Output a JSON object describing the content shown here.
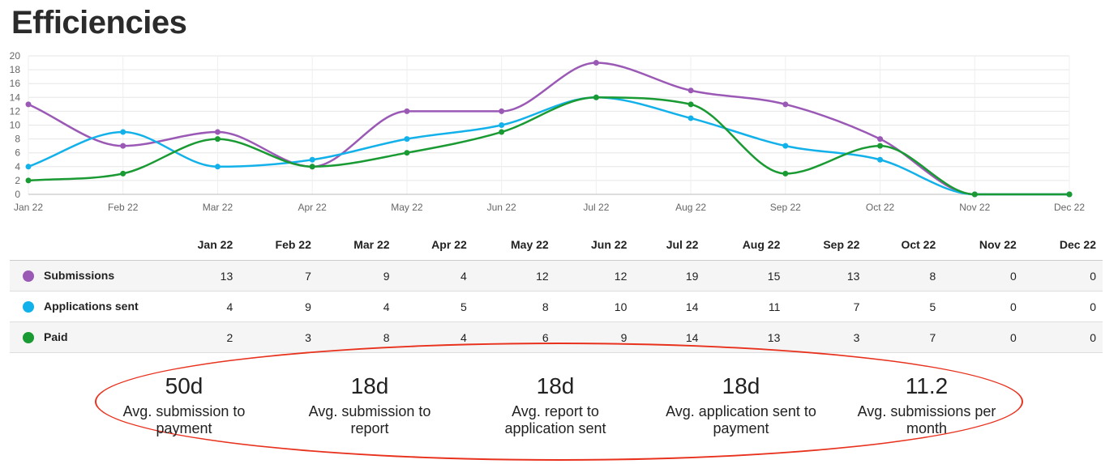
{
  "title": "Efficiencies",
  "colors": {
    "Submissions": "#9b59b6",
    "Applications sent": "#13b1ea",
    "Paid": "#1a9a33",
    "highlight_oval": "#e8321e"
  },
  "chart_data": {
    "type": "line",
    "title": "",
    "xlabel": "",
    "ylabel": "",
    "categories": [
      "Jan 22",
      "Feb 22",
      "Mar 22",
      "Apr 22",
      "May 22",
      "Jun 22",
      "Jul 22",
      "Aug 22",
      "Sep 22",
      "Oct 22",
      "Nov 22",
      "Dec 22"
    ],
    "ylim": [
      0,
      20
    ],
    "yticks": [
      0,
      2,
      4,
      6,
      8,
      10,
      12,
      14,
      16,
      18,
      20
    ],
    "grid": true,
    "smooth": true,
    "series": [
      {
        "name": "Submissions",
        "values": [
          13,
          7,
          9,
          4,
          12,
          12,
          19,
          15,
          13,
          8,
          0,
          0
        ]
      },
      {
        "name": "Applications sent",
        "values": [
          4,
          9,
          4,
          5,
          8,
          10,
          14,
          11,
          7,
          5,
          0,
          0
        ]
      },
      {
        "name": "Paid",
        "values": [
          2,
          3,
          8,
          4,
          6,
          9,
          14,
          13,
          3,
          7,
          0,
          0
        ]
      }
    ]
  },
  "metrics": [
    {
      "value": "50d",
      "label_lines": [
        "Avg. submission to",
        "payment"
      ]
    },
    {
      "value": "18d",
      "label_lines": [
        "Avg. submission to",
        "report"
      ]
    },
    {
      "value": "18d",
      "label_lines": [
        "Avg. report to",
        "application sent"
      ]
    },
    {
      "value": "18d",
      "label_lines": [
        "Avg. application sent to",
        "payment"
      ]
    },
    {
      "value": "11.2",
      "label_lines": [
        "Avg. submissions per",
        "month"
      ]
    }
  ]
}
